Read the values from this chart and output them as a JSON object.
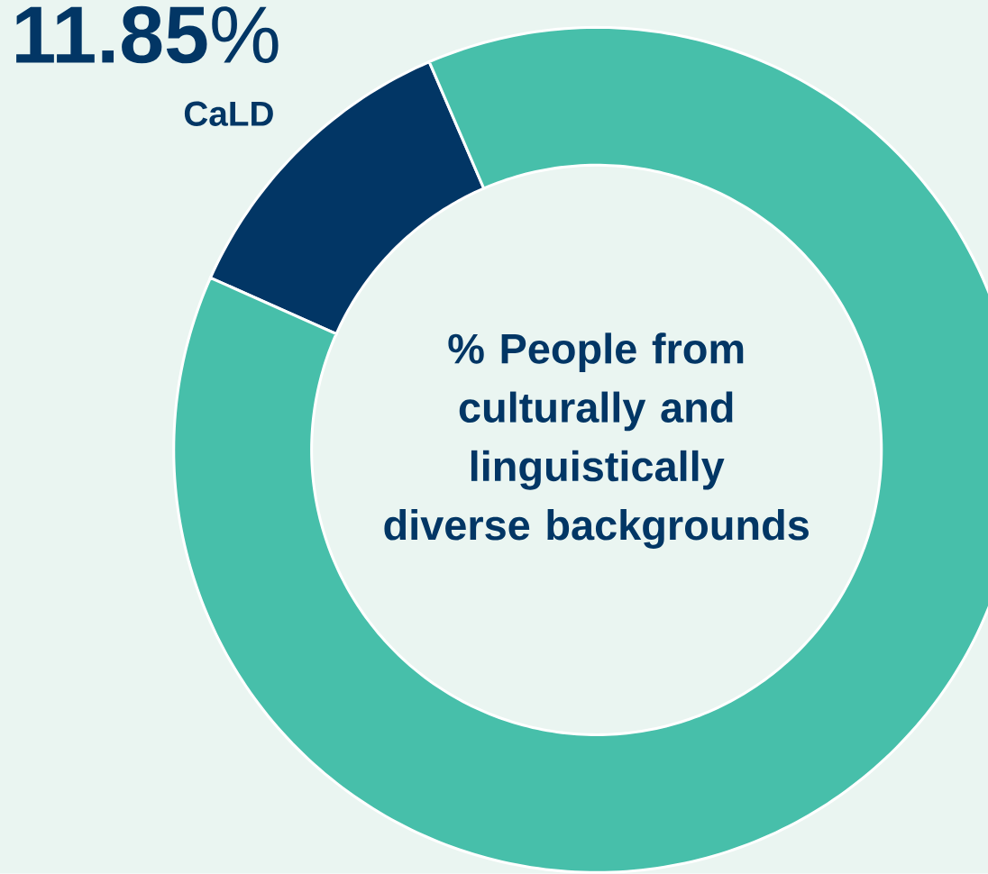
{
  "chart_data": {
    "type": "donut",
    "title": "% People from culturally and linguistically diverse backgrounds",
    "categories": [
      "CaLD",
      null
    ],
    "values": [
      11.85,
      88.15
    ],
    "colors": [
      "#023665",
      "#47bfaa"
    ],
    "value_labels": [
      "**11.85**%",
      null
    ]
  }
}
